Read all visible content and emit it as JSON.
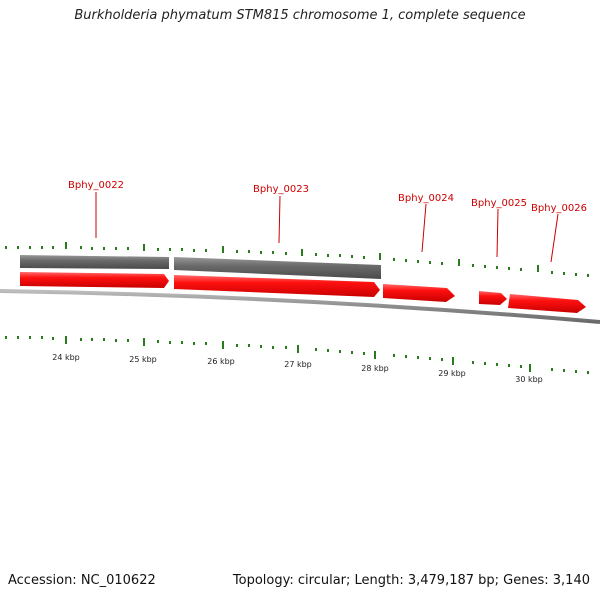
{
  "header": {
    "title": "Burkholderia phymatum STM815 chromosome 1, complete sequence"
  },
  "footer": {
    "accession": "Accession: NC_010622",
    "summary": "Topology: circular; Length: 3,479,187 bp; Genes: 3,140"
  },
  "colors": {
    "cds": "#ee0000",
    "gene": "#6d6d6d",
    "backbone": "#8a8a8a",
    "ticks": "#2a7a1e",
    "label": "#cc0000"
  },
  "genes": [
    {
      "name": "Bphy_0022"
    },
    {
      "name": "Bphy_0023"
    },
    {
      "name": "Bphy_0024"
    },
    {
      "name": "Bphy_0025"
    },
    {
      "name": "Bphy_0026"
    }
  ],
  "scale": {
    "unit": "kbp",
    "labels": [
      "24 kbp",
      "25 kbp",
      "26 kbp",
      "27 kbp",
      "28 kbp",
      "29 kbp",
      "30 kbp"
    ]
  }
}
